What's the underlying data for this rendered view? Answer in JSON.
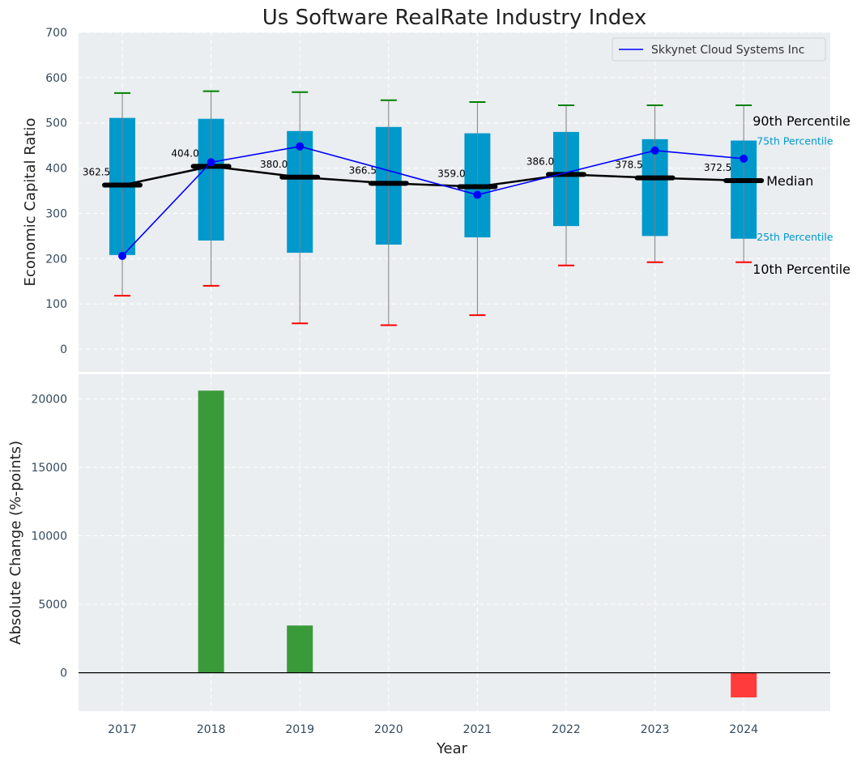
{
  "chart_data": [
    {
      "type": "box",
      "title": "Us Software RealRate Industry Index",
      "xlabel": "",
      "ylabel": "Economic Capital Ratio",
      "ylim": [
        -50,
        700
      ],
      "yticks": [
        0,
        100,
        200,
        300,
        400,
        500,
        600,
        700
      ],
      "grid": true,
      "legend_position": "top-right",
      "categories": [
        "2017",
        "2018",
        "2019",
        "2020",
        "2021",
        "2022",
        "2023",
        "2024"
      ],
      "p10": [
        118,
        140,
        57,
        53,
        75,
        185,
        192,
        192
      ],
      "p25": [
        208,
        240,
        213,
        231,
        247,
        272,
        250,
        244
      ],
      "median": [
        362.5,
        404.0,
        380.0,
        366.5,
        359.0,
        386.0,
        378.5,
        372.5
      ],
      "p75": [
        511,
        509,
        482,
        491,
        477,
        480,
        464,
        461
      ],
      "p90": [
        566,
        570,
        568,
        550,
        546,
        539,
        539,
        539
      ],
      "median_labels": [
        "362.5",
        "404.0",
        "380.0",
        "366.5",
        "359.0",
        "386.0",
        "378.5",
        "372.5"
      ],
      "series": [
        {
          "name": "Skkynet Cloud Systems Inc",
          "values": [
            206,
            413,
            448,
            null,
            341,
            null,
            439,
            421
          ]
        }
      ],
      "annotations": {
        "p90": "90th Percentile",
        "p75": "75th Percentile",
        "median": "Median",
        "p25": "25th Percentile",
        "p10": "10th Percentile"
      },
      "colors": {
        "box": "#0099cc",
        "median_line": "#000000",
        "company_line": "#0000ff",
        "p90_cap": "#008000",
        "p10_cap": "#ff0000",
        "whisker": "#808080",
        "plot_bg": "#eaeef0"
      }
    },
    {
      "type": "bar",
      "xlabel": "Year",
      "ylabel": "Absolute Change (%-points)",
      "ylim": [
        -2800,
        21800
      ],
      "yticks": [
        0,
        5000,
        10000,
        15000,
        20000
      ],
      "grid": true,
      "categories": [
        "2017",
        "2018",
        "2019",
        "2020",
        "2021",
        "2022",
        "2023",
        "2024"
      ],
      "values": [
        0,
        20600,
        3450,
        0,
        0,
        0,
        0,
        -1800
      ],
      "colors": {
        "positive": "#3a9a3a",
        "negative": "#ff3b3b",
        "zero_line": "#000000",
        "plot_bg": "#eaeef0"
      }
    }
  ]
}
